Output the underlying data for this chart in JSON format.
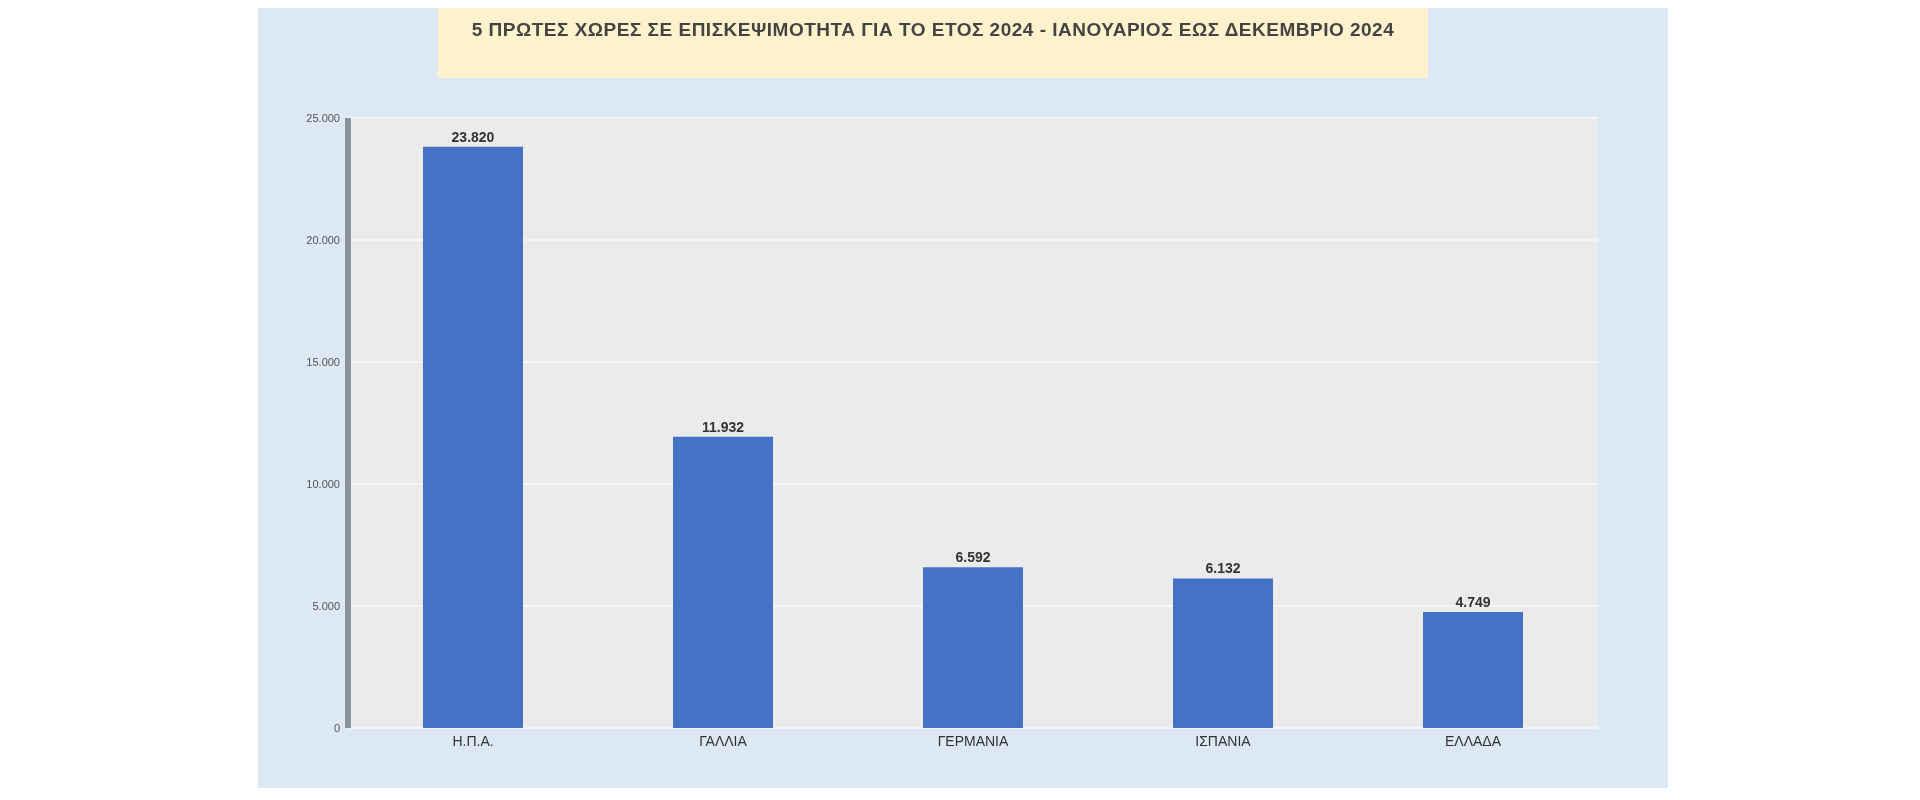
{
  "chart_data": {
    "type": "bar",
    "title": "5 ΠΡΩΤΕΣ ΧΩΡΕΣ ΣΕ ΕΠΙΣΚΕΨΙΜΟΤΗΤΑ ΓΙΑ ΤΟ ΕΤΟΣ 2024 - ΙΑΝΟΥΑΡΙΟΣ ΕΩΣ ΔΕΚΕΜΒΡΙΟ 2024",
    "categories": [
      "Η.Π.Α.",
      "ΓΑΛΛΙΑ",
      "ΓΕΡΜΑΝΙΑ",
      "ΙΣΠΑΝΙΑ",
      "ΕΛΛΑΔΑ"
    ],
    "values": [
      23820,
      11932,
      6592,
      6132,
      4749
    ],
    "value_labels": [
      "23.820",
      "11.932",
      "6.592",
      "6.132",
      "4.749"
    ],
    "color": "#4472c4",
    "ylim": [
      0,
      25000
    ],
    "yticks": [
      0,
      {
        "value": 5000,
        "label": "5.000"
      },
      {
        "value": 10000,
        "label": "10.000"
      },
      {
        "value": 15000,
        "label": "15.000"
      },
      {
        "value": 20000,
        "label": "20.000"
      },
      {
        "value": 25000,
        "label": "25.000"
      }
    ],
    "grid": "y"
  }
}
